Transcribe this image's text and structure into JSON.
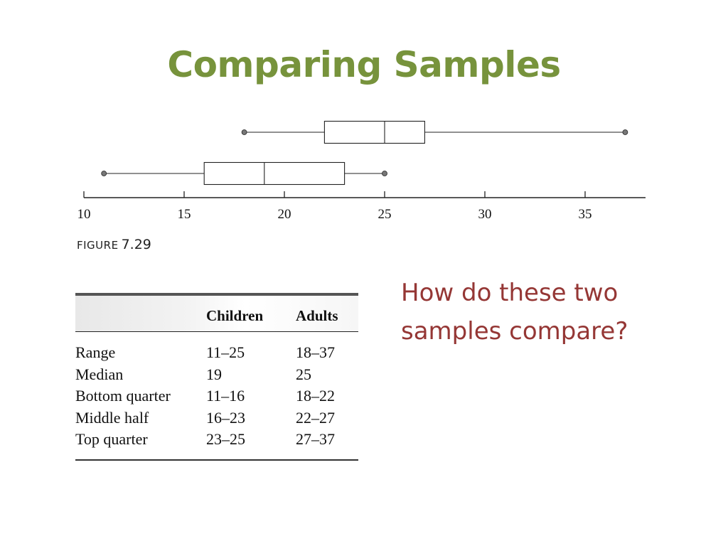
{
  "slide": {
    "title": "Comparing Samples",
    "question": "How do these two samples compare?",
    "figure_label": "FIGURE",
    "figure_number": "7.29",
    "colors": {
      "title": "#77933c",
      "question": "#953735",
      "ink": "#222222"
    }
  },
  "chart_data": {
    "type": "boxplot",
    "title": "",
    "xlabel": "",
    "ylabel": "",
    "xlim": [
      10,
      37
    ],
    "x_ticks": [
      10,
      15,
      20,
      25,
      30,
      35
    ],
    "grid": false,
    "series": [
      {
        "name": "Adults",
        "min": 18,
        "q1": 22,
        "median": 25,
        "q3": 27,
        "max": 37
      },
      {
        "name": "Children",
        "min": 11,
        "q1": 16,
        "median": 19,
        "q3": 23,
        "max": 25
      }
    ]
  },
  "table": {
    "headers": [
      "",
      "Children",
      "Adults"
    ],
    "rows": [
      [
        "Range",
        "11–25",
        "18–37"
      ],
      [
        "Median",
        "19",
        "25"
      ],
      [
        "Bottom quarter",
        "11–16",
        "18–22"
      ],
      [
        "Middle half",
        "16–23",
        "22–27"
      ],
      [
        "Top quarter",
        "23–25",
        "27–37"
      ]
    ]
  }
}
